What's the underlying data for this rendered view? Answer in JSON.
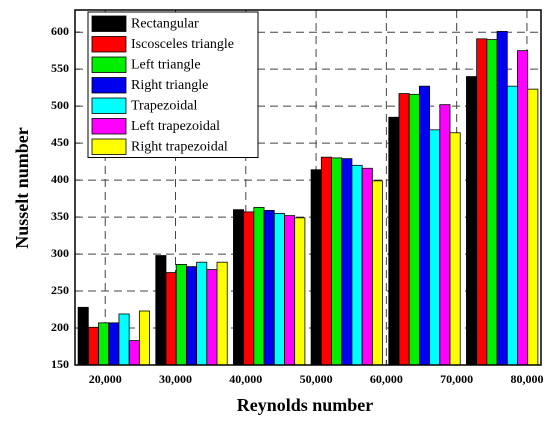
{
  "chart_data": {
    "type": "bar",
    "x_label": "Reynolds number",
    "y_label": "Nusselt number",
    "categories": [
      null,
      null,
      null,
      null,
      null,
      null
    ],
    "xlim": [
      15700,
      82000
    ],
    "xticks": [
      {
        "value": 20000,
        "label": "20,000"
      },
      {
        "value": 30000,
        "label": "30,000"
      },
      {
        "value": 40000,
        "label": "40,000"
      },
      {
        "value": 50000,
        "label": "50,000"
      },
      {
        "value": 60000,
        "label": "60,000"
      },
      {
        "value": 70000,
        "label": "70,000"
      },
      {
        "value": 80000,
        "label": "80,000"
      }
    ],
    "ylim": [
      150,
      630
    ],
    "yticks": [
      150,
      200,
      250,
      300,
      350,
      400,
      450,
      500,
      550,
      600
    ],
    "grid": true,
    "legend": "upper left",
    "series": [
      {
        "name": "Rectangular",
        "color": "#000000",
        "values": [
          228,
          298,
          360,
          414,
          485,
          540
        ]
      },
      {
        "name": "Iscosceles triangle",
        "color": "#ff0000",
        "values": [
          201,
          275,
          357,
          431,
          517,
          591
        ]
      },
      {
        "name": "Left triangle",
        "color": "#00ee00",
        "values": [
          207,
          286,
          363,
          430,
          516,
          590
        ]
      },
      {
        "name": "Right triangle",
        "color": "#0000ee",
        "values": [
          207,
          283,
          359,
          429,
          527,
          601
        ]
      },
      {
        "name": "Trapezoidal",
        "color": "#00ffff",
        "values": [
          219,
          289,
          355,
          420,
          468,
          527
        ]
      },
      {
        "name": "Left trapezoidal",
        "color": "#ff00ff",
        "values": [
          183,
          279,
          352,
          416,
          502,
          575
        ]
      },
      {
        "name": "Right trapezoidal",
        "color": "#ffff00",
        "values": [
          223,
          289,
          349,
          399,
          464,
          523
        ]
      }
    ]
  }
}
